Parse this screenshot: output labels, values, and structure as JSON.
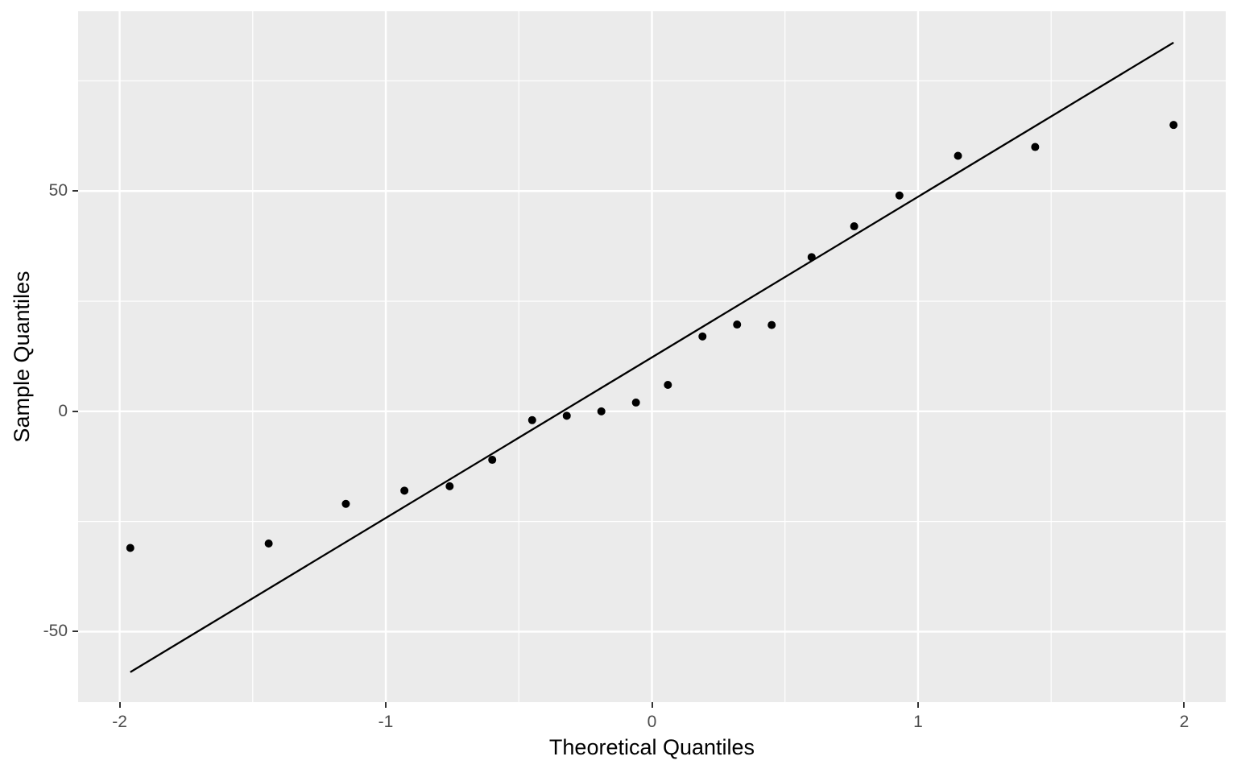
{
  "chart_data": {
    "type": "scatter",
    "title": "",
    "xlabel": "Theoretical Quantiles",
    "ylabel": "Sample Quantiles",
    "xlim": [
      -2.156,
      2.156
    ],
    "ylim": [
      -66.0,
      90.8
    ],
    "grid": true,
    "legend": false,
    "x_ticks": [
      {
        "value": -2,
        "label": "-2"
      },
      {
        "value": -1,
        "label": "-1"
      },
      {
        "value": 0,
        "label": "0"
      },
      {
        "value": 1,
        "label": "1"
      },
      {
        "value": 2,
        "label": "2"
      }
    ],
    "y_ticks": [
      {
        "value": -50,
        "label": "-50"
      },
      {
        "value": 0,
        "label": "0"
      },
      {
        "value": 50,
        "label": "50"
      }
    ],
    "x_minor": [
      -1.5,
      -0.5,
      0.5,
      1.5
    ],
    "y_minor": [
      -25,
      25,
      75
    ],
    "points": [
      {
        "x": -1.96,
        "y": -31
      },
      {
        "x": -1.44,
        "y": -30
      },
      {
        "x": -1.15,
        "y": -21
      },
      {
        "x": -0.93,
        "y": -18
      },
      {
        "x": -0.76,
        "y": -17
      },
      {
        "x": -0.6,
        "y": -11
      },
      {
        "x": -0.45,
        "y": -2
      },
      {
        "x": -0.32,
        "y": -1
      },
      {
        "x": -0.19,
        "y": 0
      },
      {
        "x": -0.06,
        "y": 2
      },
      {
        "x": 0.06,
        "y": 6
      },
      {
        "x": 0.19,
        "y": 17
      },
      {
        "x": 0.32,
        "y": 19.7
      },
      {
        "x": 0.45,
        "y": 19.6
      },
      {
        "x": 0.6,
        "y": 35
      },
      {
        "x": 0.76,
        "y": 42
      },
      {
        "x": 0.93,
        "y": 49
      },
      {
        "x": 1.15,
        "y": 58
      },
      {
        "x": 1.44,
        "y": 60
      },
      {
        "x": 1.96,
        "y": 65
      }
    ],
    "reference_line": {
      "x1": -1.96,
      "y1": -59.2,
      "x2": 1.96,
      "y2": 83.7
    }
  },
  "style": {
    "figure_bg": "#FFFFFF",
    "panel_bg": "#EBEBEB",
    "grid_color": "#FFFFFF",
    "point_color": "#000000",
    "line_color": "#000000",
    "tick_label_color": "#4D4D4D",
    "tick_mark_color": "#333333",
    "axis_title_color": "#000000"
  }
}
